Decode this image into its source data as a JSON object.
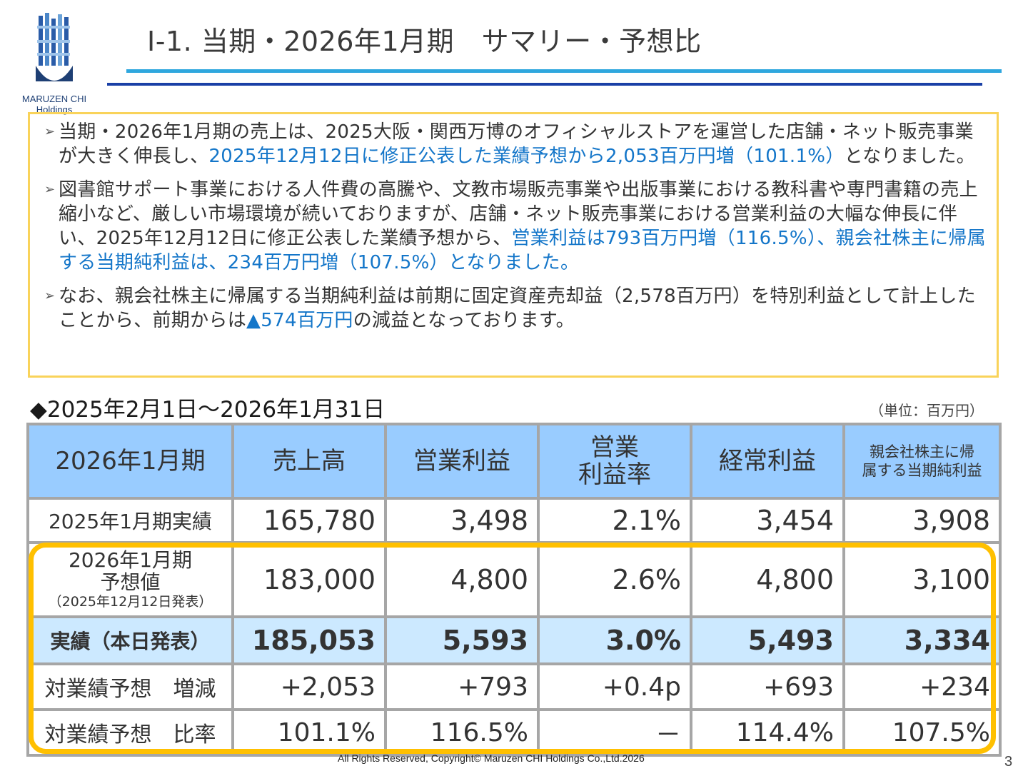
{
  "header": {
    "title": "Ⅰ-1. 当期・2026年1月期　サマリー・予想比",
    "logo_name": "MARUZEN CHI",
    "logo_sub": "Holdings"
  },
  "summary": {
    "bullets": [
      {
        "text_a": "当期・2026年1月期の売上は、2025大阪・関西万博のオフィシャルストアを運営した店舗・ネット販売事業が大きく伸長し、",
        "highlight": "2025年12月12日に修正公表した業績予想から2,053百万円増（101.1%）",
        "text_b": "となりました。"
      },
      {
        "text_a": "図書館サポート事業における人件費の高騰や、文教市場販売事業や出版事業における教科書や専門書籍の売上縮小など、厳しい市場環境が続いておりますが、店舗・ネット販売事業における営業利益の大幅な伸長に伴い、2025年12月12日に修正公表した業績予想から、",
        "highlight": "営業利益は793百万円増（116.5%）、親会社株主に帰属する当期純利益は、234百万円増（107.5%）となりました。",
        "text_b": ""
      },
      {
        "text_a": "なお、親会社株主に帰属する当期純利益は前期に固定資産売却益（2,578百万円）を特別利益として計上したことから、前期からは",
        "highlight": "▲574百万円",
        "text_b": "の減益となっております。"
      }
    ]
  },
  "table": {
    "period": "◆2025年2月1日～2026年1月31日",
    "unit": "（単位：百万円）",
    "headers": {
      "period": "2026年1月期",
      "sales": "売上高",
      "op_profit": "営業利益",
      "op_margin_l1": "営業",
      "op_margin_l2": "利益率",
      "ordinary_profit": "経常利益",
      "net_income_l1": "親会社株主に帰",
      "net_income_l2": "属する当期純利益"
    },
    "rows": {
      "prev": {
        "label": "2025年1月期実績",
        "values": [
          "165,780",
          "3,498",
          "2.1%",
          "3,454",
          "3,908"
        ]
      },
      "forecast": {
        "label_l1": "2026年1月期",
        "label_l2": "予想値",
        "label_l3": "（2025年12月12日発表）",
        "values": [
          "183,000",
          "4,800",
          "2.6%",
          "4,800",
          "3,100"
        ]
      },
      "actual": {
        "label": "実績（本日発表）",
        "values": [
          "185,053",
          "5,593",
          "3.0%",
          "5,493",
          "3,334"
        ]
      },
      "diff": {
        "label": "対業績予想　増減",
        "values": [
          "+2,053",
          "+793",
          "+0.4p",
          "+693",
          "+234"
        ]
      },
      "ratio": {
        "label": "対業績予想　比率",
        "values": [
          "101.1%",
          "116.5%",
          "－",
          "114.4%",
          "107.5%"
        ]
      }
    }
  },
  "footer": {
    "copyright": "All Rights Reserved, Copyright© Maruzen CHI Holdings Co.,Ltd.2026",
    "page": "3"
  },
  "colors": {
    "header_cell": "#99ccff",
    "actual_row": "#cce9ff",
    "highlight_text": "#1476c9",
    "summary_border": "#f9d35a",
    "emphasis_border": "#ffc000",
    "rule_light": "#2fa7de",
    "rule_dark": "#1a40a6"
  }
}
